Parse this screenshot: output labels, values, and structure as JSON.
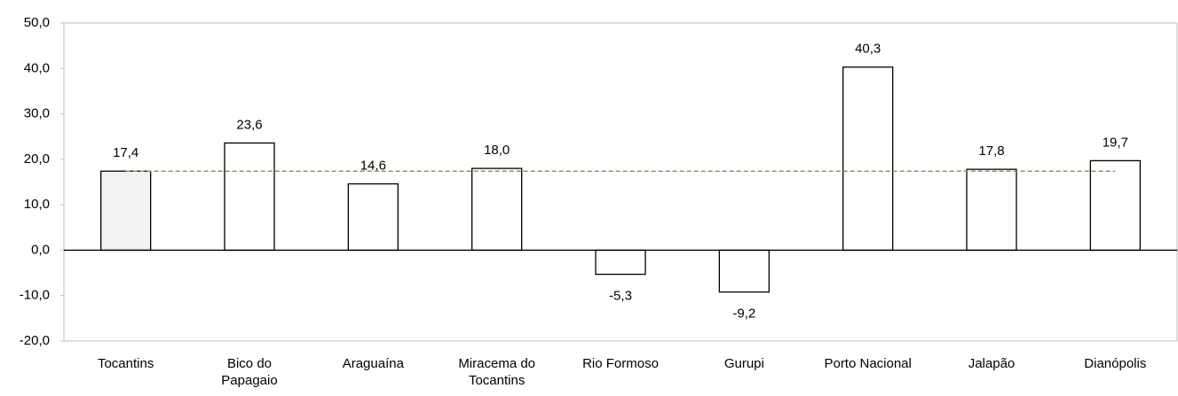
{
  "chart_data": {
    "type": "bar",
    "categories": [
      "Tocantins",
      "Bico do Papagaio",
      "Araguaína",
      "Miracema do Tocantins",
      "Rio Formoso",
      "Gurupi",
      "Porto Nacional",
      "Jalapão",
      "Dianópolis"
    ],
    "values": [
      17.4,
      23.6,
      14.6,
      18.0,
      -5.3,
      -9.2,
      40.3,
      17.8,
      19.7
    ],
    "value_labels": [
      "17,4",
      "23,6",
      "14,6",
      "18,0",
      "-5,3",
      "-9,2",
      "40,3",
      "17,8",
      "19,7"
    ],
    "colors": [
      "#f2f2f2",
      "#ffffff",
      "#ffffff",
      "#ffffff",
      "#ffffff",
      "#ffffff",
      "#ffffff",
      "#ffffff",
      "#ffffff"
    ],
    "reference_color": "#a08c64",
    "ylim": [
      -20,
      50
    ],
    "yticks": [
      {
        "value": -20,
        "label": "-20,0"
      },
      {
        "value": -10,
        "label": "-10,0"
      },
      {
        "value": 0,
        "label": "0,0"
      },
      {
        "value": 10,
        "label": "10,0"
      },
      {
        "value": 20,
        "label": "20,0"
      },
      {
        "value": 30,
        "label": "30,0"
      },
      {
        "value": 40,
        "label": "40,0"
      },
      {
        "value": 50,
        "label": "50,0"
      }
    ]
  }
}
